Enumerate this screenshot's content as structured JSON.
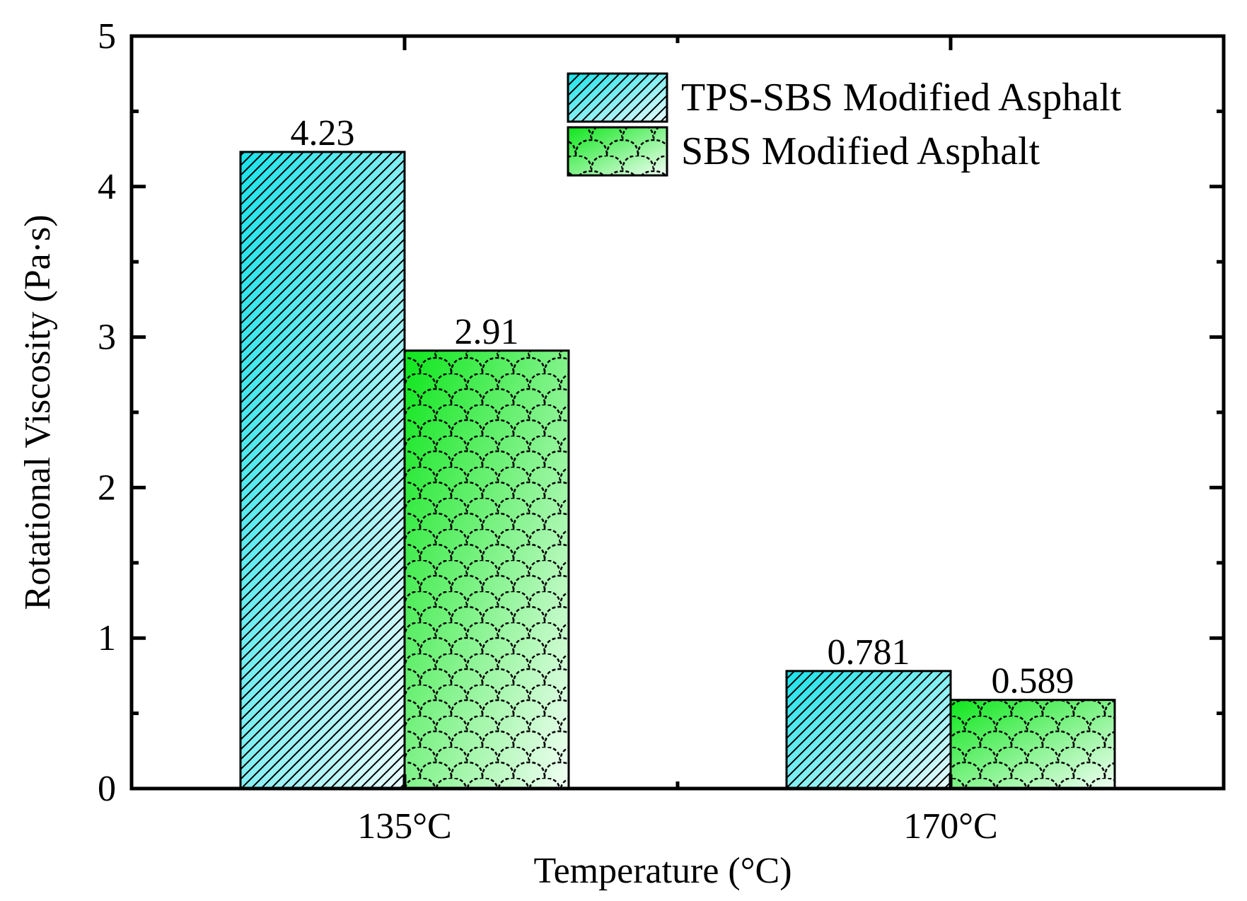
{
  "chart_data": {
    "type": "bar",
    "title": "",
    "xlabel": "Temperature (°C)",
    "ylabel": "Rotational Viscosity (Pa·s)",
    "categories": [
      "135°C",
      "170°C"
    ],
    "ylim": [
      0,
      5
    ],
    "yticks": [
      "0",
      "1",
      "2",
      "3",
      "4",
      "5"
    ],
    "grid": false,
    "legend_position": "top-right",
    "series": [
      {
        "name": "TPS-SBS Modified Asphalt",
        "values": [
          4.23,
          0.781
        ],
        "labels": [
          "4.23",
          "0.781"
        ],
        "fill_color": "#19e3ea",
        "fill_color_end": "#eafbfb",
        "pattern": "diagonal-hatch"
      },
      {
        "name": "SBS Modified Asphalt",
        "values": [
          2.91,
          0.589
        ],
        "labels": [
          "2.91",
          "0.589"
        ],
        "fill_color": "#0ee61c",
        "fill_color_end": "#f2fff5",
        "pattern": "scale"
      }
    ]
  }
}
